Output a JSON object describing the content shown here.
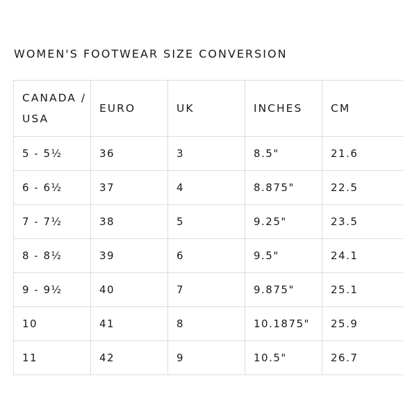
{
  "title": "WOMEN'S FOOTWEAR SIZE CONVERSION",
  "table": {
    "headers": [
      "CANADA / USA",
      "EURO",
      "UK",
      "INCHES",
      "CM"
    ],
    "rows": [
      [
        "5 - 5½",
        "36",
        "3",
        "8.5\"",
        "21.6"
      ],
      [
        "6 - 6½",
        "37",
        "4",
        "8.875\"",
        "22.5"
      ],
      [
        "7 - 7½",
        "38",
        "5",
        "9.25\"",
        "23.5"
      ],
      [
        "8 - 8½",
        "39",
        "6",
        "9.5\"",
        "24.1"
      ],
      [
        "9 - 9½",
        "40",
        "7",
        "9.875\"",
        "25.1"
      ],
      [
        "10",
        "41",
        "8",
        "10.1875\"",
        "25.9"
      ],
      [
        "11",
        "42",
        "9",
        "10.5\"",
        "26.7"
      ]
    ]
  }
}
